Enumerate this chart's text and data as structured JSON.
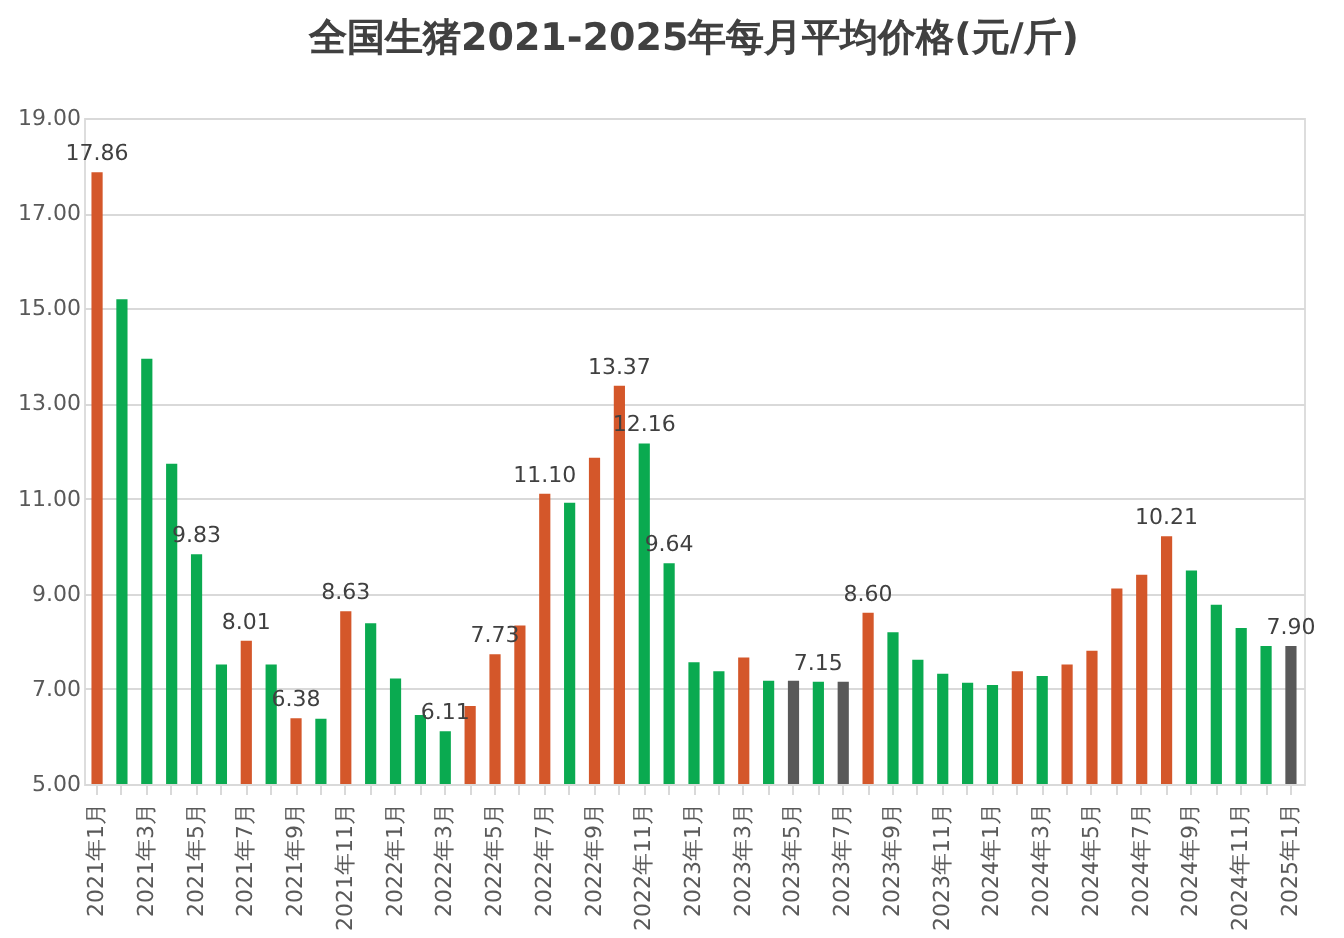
{
  "chart_data": {
    "type": "bar",
    "title": "全国生猪2021-2025年每月平均价格(元/斤)",
    "categories": [
      "2021年1月",
      null,
      "2021年3月",
      null,
      "2021年5月",
      null,
      "2021年7月",
      null,
      "2021年9月",
      null,
      "2021年11月",
      null,
      "2022年1月",
      null,
      "2022年3月",
      null,
      "2022年5月",
      null,
      "2022年7月",
      null,
      "2022年9月",
      null,
      "2022年11月",
      null,
      "2023年1月",
      null,
      "2023年3月",
      null,
      "2023年5月",
      null,
      "2023年7月",
      null,
      "2023年9月",
      null,
      "2023年11月",
      null,
      "2024年1月",
      null,
      "2024年3月",
      null,
      "2024年5月",
      null,
      "2024年7月",
      null,
      "2024年9月",
      null,
      "2024年11月",
      null,
      "2025年1月"
    ],
    "values": [
      17.86,
      15.19,
      13.94,
      11.73,
      9.83,
      7.51,
      8.01,
      7.51,
      6.38,
      6.37,
      8.63,
      8.38,
      7.22,
      6.45,
      6.11,
      6.64,
      7.73,
      8.33,
      11.1,
      10.91,
      11.86,
      13.37,
      12.16,
      9.64,
      7.56,
      7.37,
      7.66,
      7.17,
      7.17,
      7.15,
      7.15,
      8.6,
      8.19,
      7.61,
      7.32,
      7.13,
      7.08,
      7.37,
      7.27,
      7.51,
      7.8,
      9.11,
      9.4,
      10.21,
      9.49,
      8.77,
      8.28,
      7.9,
      7.9
    ],
    "value_labels": [
      "17.86",
      null,
      null,
      null,
      "9.83",
      null,
      "8.01",
      null,
      "6.38",
      null,
      "8.63",
      null,
      null,
      null,
      "6.11",
      null,
      "7.73",
      null,
      "11.10",
      null,
      null,
      "13.37",
      "12.16",
      "9.64",
      null,
      null,
      null,
      null,
      null,
      "7.15",
      null,
      "8.60",
      null,
      null,
      null,
      null,
      null,
      null,
      null,
      null,
      null,
      null,
      null,
      "10.21",
      null,
      null,
      null,
      null,
      "7.90"
    ],
    "colors": [
      "#d4572a",
      "#0aaa50",
      "#0aaa50",
      "#0aaa50",
      "#0aaa50",
      "#0aaa50",
      "#d4572a",
      "#0aaa50",
      "#d4572a",
      "#0aaa50",
      "#d4572a",
      "#0aaa50",
      "#0aaa50",
      "#0aaa50",
      "#0aaa50",
      "#d4572a",
      "#d4572a",
      "#d4572a",
      "#d4572a",
      "#0aaa50",
      "#d4572a",
      "#d4572a",
      "#0aaa50",
      "#0aaa50",
      "#0aaa50",
      "#0aaa50",
      "#d4572a",
      "#0aaa50",
      "#595959",
      "#0aaa50",
      "#595959",
      "#d4572a",
      "#0aaa50",
      "#0aaa50",
      "#0aaa50",
      "#0aaa50",
      "#0aaa50",
      "#d4572a",
      "#0aaa50",
      "#d4572a",
      "#d4572a",
      "#d4572a",
      "#d4572a",
      "#d4572a",
      "#0aaa50",
      "#0aaa50",
      "#0aaa50",
      "#0aaa50",
      "#595959"
    ],
    "ylim": [
      5,
      19
    ],
    "yticks": [
      {
        "value": 5,
        "label": "5.00"
      },
      {
        "value": 7,
        "label": "7.00"
      },
      {
        "value": 9,
        "label": "9.00"
      },
      {
        "value": 11,
        "label": "11.00"
      },
      {
        "value": 13,
        "label": "13.00"
      },
      {
        "value": 15,
        "label": "15.00"
      },
      {
        "value": 17,
        "label": "17.00"
      },
      {
        "value": 19,
        "label": "19.00"
      }
    ],
    "grid": "y",
    "legend": false
  }
}
